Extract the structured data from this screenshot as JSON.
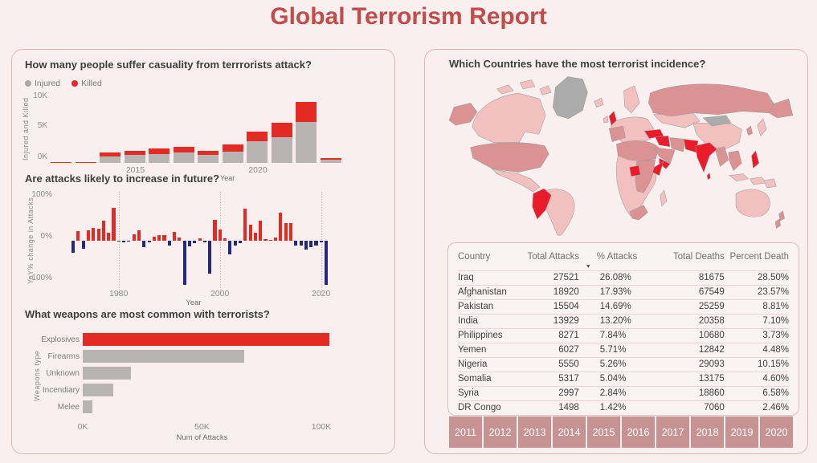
{
  "page": {
    "title": "Global Terrorism Report",
    "accent_color": "#c14c4c",
    "background": "#f8efee"
  },
  "chart_data": [
    {
      "id": "casualties",
      "type": "bar",
      "stacked": true,
      "title": "How many people suffer casuality from terrrorists attack?",
      "legend": [
        "Injured",
        "Killed"
      ],
      "categories": [
        2012,
        2013,
        2014,
        2015,
        2016,
        2017,
        2018,
        2019,
        2020,
        2021,
        2022,
        2023
      ],
      "series": [
        {
          "name": "Injured",
          "color": "#b7b4b3",
          "values": [
            60,
            70,
            1050,
            1300,
            1500,
            1700,
            1350,
            1900,
            3600,
            4300,
            6900,
            550
          ]
        },
        {
          "name": "Killed",
          "color": "#e32b23",
          "values": [
            40,
            40,
            650,
            700,
            900,
            1000,
            650,
            1150,
            1700,
            2400,
            3400,
            300
          ]
        }
      ],
      "xlabel": "Year",
      "ylabel": "Injured and Killed",
      "yticks": [
        "0K",
        "5K",
        "10K"
      ],
      "ylim": [
        0,
        11350
      ],
      "xticks_shown": [
        2015,
        2020
      ],
      "legend_position": "top-left"
    },
    {
      "id": "yoy_change",
      "type": "bar",
      "title": "Are attacks likely to increase in future?",
      "x": [
        1971,
        1972,
        1973,
        1974,
        1975,
        1976,
        1977,
        1978,
        1979,
        1980,
        1981,
        1982,
        1983,
        1984,
        1985,
        1986,
        1987,
        1988,
        1989,
        1990,
        1991,
        1992,
        1993,
        1994,
        1995,
        1996,
        1997,
        1998,
        1999,
        2000,
        2001,
        2002,
        2003,
        2004,
        2005,
        2006,
        2007,
        2008,
        2009,
        2010,
        2011,
        2012,
        2013,
        2014,
        2015,
        2016,
        2017,
        2018,
        2019,
        2020,
        2021
      ],
      "values": [
        -27,
        21,
        -18,
        24,
        29,
        27,
        45,
        18,
        75,
        -2,
        -3,
        -2,
        15,
        24,
        -15,
        -3,
        10,
        12,
        13,
        -10,
        20,
        8,
        -100,
        -12,
        -5,
        5,
        -3,
        -75,
        48,
        26,
        6,
        -30,
        -10,
        -6,
        72,
        37,
        18,
        46,
        3,
        2,
        8,
        64,
        40,
        40,
        -11,
        -11,
        -20,
        -14,
        -10,
        -3,
        -100
      ],
      "positive_color": "#e32b23",
      "negative_color": "#232a7e",
      "xlabel": "Year",
      "ylabel": "YoY% change in Attacks",
      "yticks": [
        "100%",
        "0%",
        "-100%"
      ],
      "ylim": [
        -100,
        100
      ],
      "xticks_shown": [
        1980,
        2000,
        2020
      ],
      "grid": "dotted-vertical"
    },
    {
      "id": "weapons",
      "type": "bar",
      "orientation": "horizontal",
      "title": "What weapons are most common with terrorists?",
      "categories": [
        "Explosives",
        "Firearms",
        "Unknown",
        "Incendiary",
        "Melee"
      ],
      "values": [
        103500,
        67700,
        20200,
        12900,
        4200
      ],
      "colors": [
        "#e32b23",
        "#b7b4b3",
        "#b7b4b3",
        "#b7b4b3",
        "#b7b4b3"
      ],
      "xlabel": "Num of Attacks",
      "ylabel": "Weapons type",
      "xticks": [
        "0K",
        "50K",
        "100K"
      ],
      "xlim": [
        0,
        111000
      ]
    }
  ],
  "map_section": {
    "title": "Which Countries have the most terrorist incidence?",
    "palette": {
      "no_data": "#ababab",
      "low": "#f3c0c0",
      "mid": "#db9292",
      "high": "#ec1b2b"
    }
  },
  "table": {
    "columns": [
      "Country",
      "Total Attacks",
      "% Attacks",
      "Total Deaths",
      "Percent Death"
    ],
    "sort_icon": "▼",
    "rows": [
      [
        "Iraq",
        "27521",
        "26.08%",
        "81675",
        "28.50%"
      ],
      [
        "Afghanistan",
        "18920",
        "17.93%",
        "67549",
        "23.57%"
      ],
      [
        "Pakistan",
        "15504",
        "14.69%",
        "25259",
        "8.81%"
      ],
      [
        "India",
        "13929",
        "13.20%",
        "20358",
        "7.10%"
      ],
      [
        "Philippines",
        "8271",
        "7.84%",
        "10680",
        "3.73%"
      ],
      [
        "Yemen",
        "6027",
        "5.71%",
        "12842",
        "4.48%"
      ],
      [
        "Nigeria",
        "5550",
        "5.26%",
        "29093",
        "10.15%"
      ],
      [
        "Somalia",
        "5317",
        "5.04%",
        "13175",
        "4.60%"
      ],
      [
        "Syria",
        "2997",
        "2.84%",
        "18860",
        "6.58%"
      ],
      [
        "DR Congo",
        "1498",
        "1.42%",
        "7060",
        "2.46%"
      ]
    ]
  },
  "year_slicer": {
    "years": [
      "2011",
      "2012",
      "2013",
      "2014",
      "2015",
      "2016",
      "2017",
      "2018",
      "2019",
      "2020"
    ]
  }
}
